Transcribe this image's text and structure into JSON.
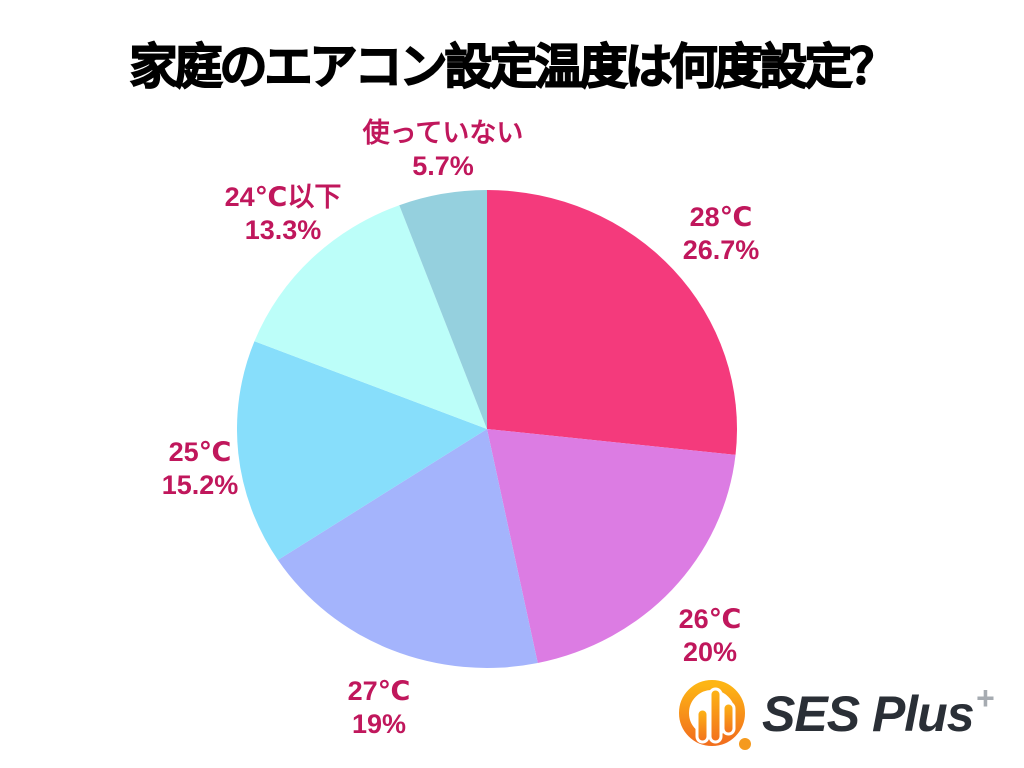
{
  "title": "家庭のエアコン設定温度は何度設定？",
  "chart_data": {
    "type": "pie",
    "title": "家庭のエアコン設定温度は何度設定？",
    "start_angle_deg": 0,
    "direction": "clockwise",
    "label_color": "#C0175C",
    "slices": [
      {
        "label": "28℃",
        "value_pct": 26.7,
        "pct_label": "26.7%",
        "color": "#F43A7C"
      },
      {
        "label": "26℃",
        "value_pct": 20,
        "pct_label": "20%",
        "color": "#DC7CE3"
      },
      {
        "label": "27℃",
        "value_pct": 19,
        "pct_label": "19%",
        "color": "#A4B4FC"
      },
      {
        "label": "25℃",
        "value_pct": 15.2,
        "pct_label": "15.2%",
        "color": "#87DEFB"
      },
      {
        "label": "24℃以下",
        "value_pct": 13.3,
        "pct_label": "13.3%",
        "color": "#BCFEF9"
      },
      {
        "label": "使っていない",
        "value_pct": 5.7,
        "pct_label": "5.7%",
        "color": "#95D0DE"
      }
    ]
  },
  "brand": {
    "name": "SES Plus",
    "plus_mark": "+",
    "icon": "orange-bar-chart-circle-icon",
    "icon_colors": {
      "gradient_top": "#FDB515",
      "gradient_bottom": "#F2701D",
      "dot": "#F59A1E"
    }
  }
}
